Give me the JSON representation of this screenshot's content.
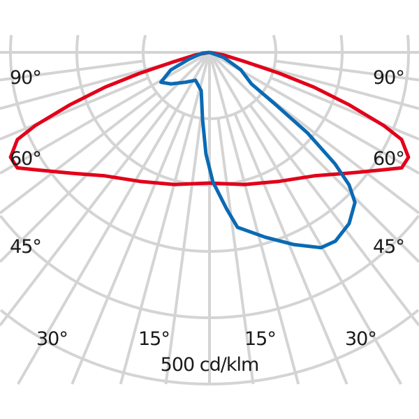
{
  "chart_data": {
    "type": "polar-line",
    "unit_label": "500 cd/klm",
    "radial_max": 500,
    "radial_ticks": [
      100,
      200,
      300,
      400,
      500
    ],
    "angle_labels": {
      "left": [
        "90°",
        "60°",
        "45°",
        "30°",
        "15°"
      ],
      "right": [
        "90°",
        "60°",
        "45°",
        "30°",
        "15°"
      ]
    },
    "grid": true,
    "series": [
      {
        "color": "#e2001a",
        "points": [
          [
            -90,
            0
          ],
          [
            -80,
            20
          ],
          [
            -75.4,
            54
          ],
          [
            -73.3,
            110
          ],
          [
            -71.6,
            166
          ],
          [
            -69.4,
            225
          ],
          [
            -67.2,
            285
          ],
          [
            -65.6,
            318
          ],
          [
            -62.2,
            339
          ],
          [
            -59,
            338
          ],
          [
            -56.1,
            317
          ],
          [
            -49.1,
            278
          ],
          [
            -40.3,
            244
          ],
          [
            -28.4,
            221
          ],
          [
            -14.8,
            206
          ],
          [
            0,
            197
          ],
          [
            14.8,
            206
          ],
          [
            28.4,
            221
          ],
          [
            40.3,
            244
          ],
          [
            49.1,
            278
          ],
          [
            56.1,
            317
          ],
          [
            59,
            338
          ],
          [
            62.2,
            339
          ],
          [
            65.6,
            318
          ],
          [
            67.2,
            285
          ],
          [
            69.4,
            225
          ],
          [
            71.6,
            166
          ],
          [
            73.3,
            110
          ],
          [
            75.4,
            54
          ],
          [
            80,
            20
          ],
          [
            90,
            0
          ]
        ]
      },
      {
        "color": "#0a6ab4",
        "points": [
          [
            90,
            0
          ],
          [
            70.7,
            22
          ],
          [
            60.9,
            54
          ],
          [
            53.1,
            79
          ],
          [
            51.7,
            127
          ],
          [
            50.6,
            191
          ],
          [
            48.4,
            253
          ],
          [
            46.5,
            290
          ],
          [
            44.1,
            315
          ],
          [
            39.2,
            333
          ],
          [
            33.7,
            342
          ],
          [
            29.7,
            339
          ],
          [
            23.6,
            316
          ],
          [
            16.8,
            291
          ],
          [
            9.1,
            267
          ],
          [
            6.3,
            238
          ],
          [
            1.5,
            195
          ],
          [
            -2,
            153
          ],
          [
            -6,
            101
          ],
          [
            -12.3,
            59
          ],
          [
            -26.6,
            47
          ],
          [
            -39.1,
            58
          ],
          [
            -50.7,
            75
          ],
          [
            -58.4,
            86
          ],
          [
            -65.6,
            64
          ],
          [
            -71.6,
            33
          ],
          [
            -84,
            11
          ],
          [
            -90,
            0
          ]
        ]
      }
    ]
  }
}
